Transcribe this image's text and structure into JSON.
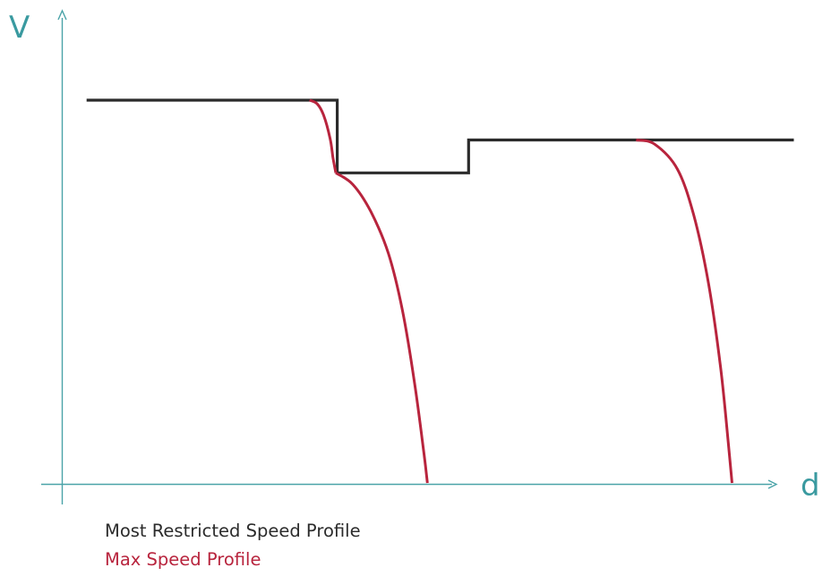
{
  "chart_data": {
    "type": "line",
    "xlabel": "d",
    "ylabel": "V",
    "xlim": [
      0,
      100
    ],
    "ylim": [
      0,
      100
    ],
    "ticks": false,
    "grid": false,
    "legend_position": "bottom-left",
    "series": [
      {
        "name": "Most Restricted Speed Profile",
        "color": "#2b2b2b",
        "shape": "step",
        "x": [
          5,
          40.3,
          40.3,
          58.8,
          58.8,
          104.6
        ],
        "y": [
          100,
          100,
          81,
          81,
          89.6,
          89.6
        ]
      },
      {
        "name": "Max Speed Profile",
        "color": "#b8243d",
        "shape": "braking-curve",
        "segments": [
          {
            "x": [
              36.4,
              37.5,
              38.4,
              39.3,
              39.7,
              40.1
            ],
            "y": [
              100,
              99,
              96,
              90,
              85,
              81
            ]
          },
          {
            "x": [
              40.1,
              42.5,
              45.0,
              47.5,
              49.5,
              51.2,
              52.5,
              53.0
            ],
            "y": [
              81,
              78,
              71,
              60,
              45,
              26,
              8,
              0
            ]
          },
          {
            "x": [
              82.4,
              85.0,
              88.2,
              90.5,
              92.6,
              94.3,
              95.4,
              95.9
            ],
            "y": [
              89.6,
              88.5,
              82,
              70,
              52,
              30,
              10,
              0
            ]
          }
        ]
      }
    ]
  },
  "colors": {
    "axis": "#4aa3a8",
    "axis_label": "#3a9aa0"
  }
}
